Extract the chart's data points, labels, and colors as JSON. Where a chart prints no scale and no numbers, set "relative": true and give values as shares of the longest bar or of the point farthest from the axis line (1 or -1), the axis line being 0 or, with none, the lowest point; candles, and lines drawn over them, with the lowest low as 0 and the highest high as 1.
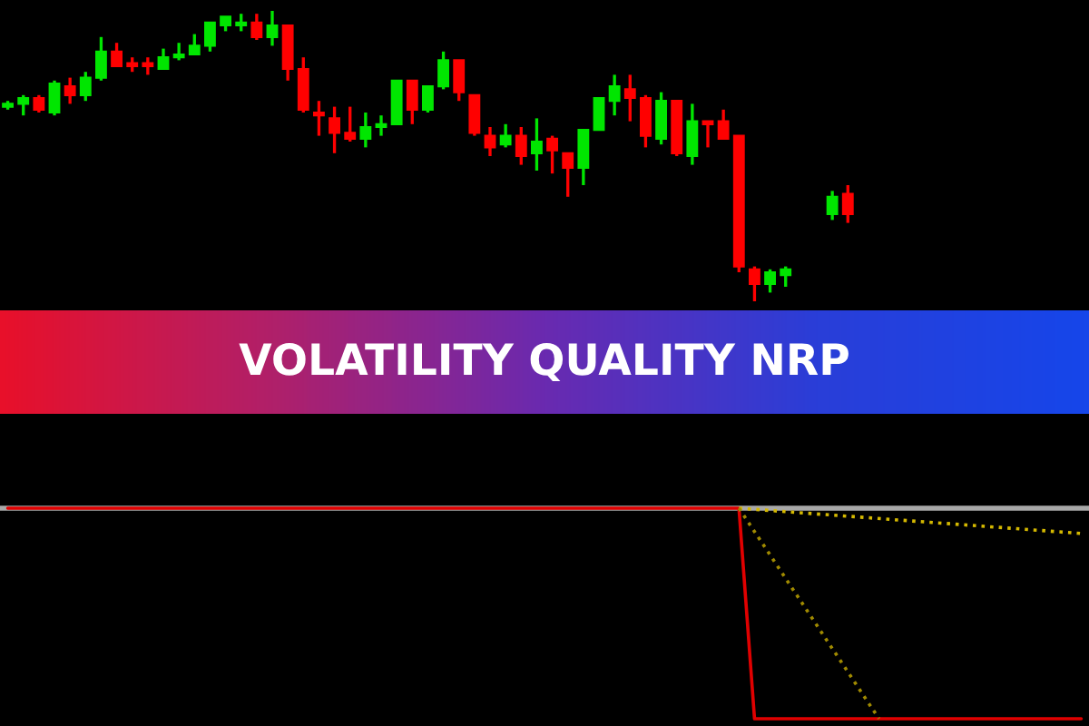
{
  "chart_data": [
    {
      "type": "candlestick",
      "title": "VOLATILITY QUALITY NRP",
      "relative": true,
      "colors": [
        "#00e600",
        "#00e600",
        "#ff0000",
        "#00e600",
        "#ff0000",
        "#00e600",
        "#00e600",
        "#ff0000",
        "#ff0000",
        "#ff0000",
        "#00e600",
        "#00e600",
        "#00e600",
        "#00e600",
        "#00e600",
        "#00e600",
        "#ff0000",
        "#00e600",
        "#ff0000",
        "#ff0000",
        "#ff0000",
        "#ff0000",
        "#ff0000",
        "#00e600",
        "#00e600",
        "#00e600",
        "#ff0000",
        "#00e600",
        "#00e600",
        "#ff0000",
        "#ff0000",
        "#ff0000",
        "#00e600",
        "#ff0000",
        "#00e600",
        "#ff0000",
        "#ff0000",
        "#00e600",
        "#00e600",
        "#00e600",
        "#ff0000",
        "#ff0000",
        "#00e600",
        "#ff0000",
        "#00e600",
        "#ff0000",
        "#ff0000",
        "#ff0000",
        "#ff0000",
        "#00e600",
        "#00e600",
        null,
        null,
        "#00e600",
        "#ff0000",
        null,
        null,
        null,
        null,
        null,
        null,
        null,
        null,
        null,
        null,
        null,
        null,
        null,
        null,
        null
      ],
      "categories": [
        null,
        null,
        null,
        null,
        null,
        null,
        null,
        null,
        null,
        null,
        null,
        null,
        null,
        null,
        null,
        null,
        null,
        null,
        null,
        null,
        null,
        null,
        null,
        null,
        null,
        null,
        null,
        null,
        null,
        null,
        null,
        null,
        null,
        null,
        null,
        null,
        null,
        null,
        null,
        null,
        null,
        null,
        null,
        null,
        null,
        null,
        null,
        null,
        null,
        null,
        null,
        null,
        null,
        null,
        null,
        null,
        null,
        null,
        null,
        null,
        null,
        null,
        null,
        null,
        null,
        null,
        null,
        null,
        null,
        null
      ],
      "ohlc": [
        [
          0.67,
          0.69,
          0.66,
          0.68
        ],
        [
          0.68,
          0.71,
          0.64,
          0.7
        ],
        [
          0.7,
          0.71,
          0.65,
          0.66
        ],
        [
          0.65,
          0.76,
          0.64,
          0.75
        ],
        [
          0.74,
          0.77,
          0.68,
          0.71
        ],
        [
          0.71,
          0.79,
          0.69,
          0.77
        ],
        [
          0.77,
          0.91,
          0.76,
          0.86
        ],
        [
          0.86,
          0.89,
          0.81,
          0.81
        ],
        [
          0.82,
          0.84,
          0.79,
          0.81
        ],
        [
          0.82,
          0.84,
          0.78,
          0.81
        ],
        [
          0.8,
          0.87,
          0.8,
          0.84
        ],
        [
          0.84,
          0.89,
          0.83,
          0.85
        ],
        [
          0.85,
          0.92,
          0.85,
          0.88
        ],
        [
          0.88,
          0.96,
          0.86,
          0.96
        ],
        [
          0.95,
          0.98,
          0.93,
          0.98
        ],
        [
          0.95,
          0.99,
          0.93,
          0.96
        ],
        [
          0.96,
          0.99,
          0.9,
          0.91
        ],
        [
          0.91,
          1.0,
          0.88,
          0.95
        ],
        [
          0.95,
          0.95,
          0.76,
          0.8
        ],
        [
          0.8,
          0.84,
          0.65,
          0.66
        ],
        [
          0.65,
          0.69,
          0.57,
          0.64
        ],
        [
          0.63,
          0.67,
          0.51,
          0.58
        ],
        [
          0.58,
          0.67,
          0.55,
          0.56
        ],
        [
          0.56,
          0.65,
          0.53,
          0.6
        ],
        [
          0.6,
          0.64,
          0.57,
          0.61
        ],
        [
          0.61,
          0.76,
          0.61,
          0.76
        ],
        [
          0.76,
          0.76,
          0.61,
          0.66
        ],
        [
          0.66,
          0.74,
          0.65,
          0.74
        ],
        [
          0.74,
          0.86,
          0.73,
          0.83
        ],
        [
          0.83,
          0.83,
          0.69,
          0.72
        ],
        [
          0.71,
          0.71,
          0.57,
          0.58
        ],
        [
          0.57,
          0.6,
          0.5,
          0.53
        ],
        [
          0.54,
          0.61,
          0.53,
          0.57
        ],
        [
          0.57,
          0.6,
          0.47,
          0.5
        ],
        [
          0.51,
          0.63,
          0.45,
          0.55
        ],
        [
          0.56,
          0.57,
          0.44,
          0.52
        ],
        [
          0.51,
          0.51,
          0.36,
          0.46
        ],
        [
          0.46,
          0.59,
          0.4,
          0.59
        ],
        [
          0.59,
          0.7,
          0.59,
          0.7
        ],
        [
          0.69,
          0.78,
          0.64,
          0.74
        ],
        [
          0.73,
          0.78,
          0.62,
          0.7
        ],
        [
          0.7,
          0.71,
          0.53,
          0.57
        ],
        [
          0.56,
          0.72,
          0.54,
          0.69
        ],
        [
          0.69,
          0.69,
          0.5,
          0.51
        ],
        [
          0.5,
          0.68,
          0.47,
          0.62
        ],
        [
          0.62,
          0.62,
          0.53,
          0.61
        ],
        [
          0.62,
          0.66,
          0.56,
          0.56
        ],
        [
          0.57,
          0.57,
          0.1,
          0.12
        ],
        [
          0.11,
          0.12,
          0.0,
          0.06
        ],
        [
          0.06,
          0.11,
          0.03,
          0.1
        ],
        [
          0.09,
          0.12,
          0.05,
          0.11
        ],
        null,
        null,
        [
          0.3,
          0.38,
          0.28,
          0.36
        ],
        [
          0.37,
          0.4,
          0.27,
          0.3
        ],
        null,
        null,
        null,
        null,
        null,
        null,
        null,
        null,
        null,
        null,
        null,
        null,
        null,
        null,
        null
      ]
    },
    {
      "type": "line",
      "relative": true,
      "categories": [
        null,
        null,
        null,
        null,
        null,
        null,
        null,
        null,
        null,
        null,
        null,
        null,
        null,
        null,
        null,
        null,
        null,
        null,
        null,
        null,
        null,
        null,
        null,
        null,
        null,
        null,
        null,
        null,
        null,
        null,
        null,
        null,
        null,
        null,
        null,
        null,
        null,
        null,
        null,
        null,
        null,
        null,
        null,
        null,
        null,
        null,
        null,
        null,
        null,
        null,
        null,
        null,
        null,
        null,
        null,
        null,
        null,
        null,
        null,
        null,
        null,
        null,
        null,
        null,
        null,
        null,
        null,
        null,
        null,
        null
      ],
      "series": [
        {
          "color": "#e00000",
          "line_style": "solid",
          "values": [
            1,
            1,
            1,
            1,
            1,
            1,
            1,
            1,
            1,
            1,
            1,
            1,
            1,
            1,
            1,
            1,
            1,
            1,
            1,
            1,
            1,
            1,
            1,
            1,
            1,
            1,
            1,
            1,
            1,
            1,
            1,
            1,
            1,
            1,
            1,
            1,
            1,
            1,
            1,
            1,
            1,
            1,
            1,
            1,
            1,
            1,
            1,
            1,
            0,
            0,
            0,
            0,
            0,
            0,
            0,
            0,
            0,
            0,
            0,
            0,
            0,
            0,
            0,
            0,
            0,
            0,
            0,
            0,
            0,
            0
          ]
        },
        {
          "color": "#d4b800",
          "line_style": "dotted",
          "values": [
            null,
            null,
            null,
            null,
            null,
            null,
            null,
            null,
            null,
            null,
            null,
            null,
            null,
            null,
            null,
            null,
            null,
            null,
            null,
            null,
            null,
            null,
            null,
            null,
            null,
            null,
            null,
            null,
            null,
            null,
            null,
            null,
            null,
            null,
            null,
            null,
            null,
            null,
            null,
            null,
            null,
            null,
            null,
            null,
            null,
            null,
            null,
            1,
            null,
            null,
            null,
            null,
            null,
            null,
            null,
            null,
            null,
            null,
            null,
            null,
            null,
            null,
            null,
            null,
            null,
            null,
            null,
            null,
            null,
            0.88
          ]
        },
        {
          "color": "#a08a00",
          "line_style": "dotted",
          "values": [
            null,
            null,
            null,
            null,
            null,
            null,
            null,
            null,
            null,
            null,
            null,
            null,
            null,
            null,
            null,
            null,
            null,
            null,
            null,
            null,
            null,
            null,
            null,
            null,
            null,
            null,
            null,
            null,
            null,
            null,
            null,
            null,
            null,
            null,
            null,
            null,
            null,
            null,
            null,
            null,
            null,
            null,
            null,
            null,
            null,
            null,
            null,
            1,
            null,
            null,
            null,
            null,
            null,
            null,
            null,
            null,
            0,
            null,
            null,
            null,
            null,
            null,
            null,
            null,
            null,
            null,
            null,
            null,
            null,
            null
          ]
        }
      ]
    }
  ]
}
